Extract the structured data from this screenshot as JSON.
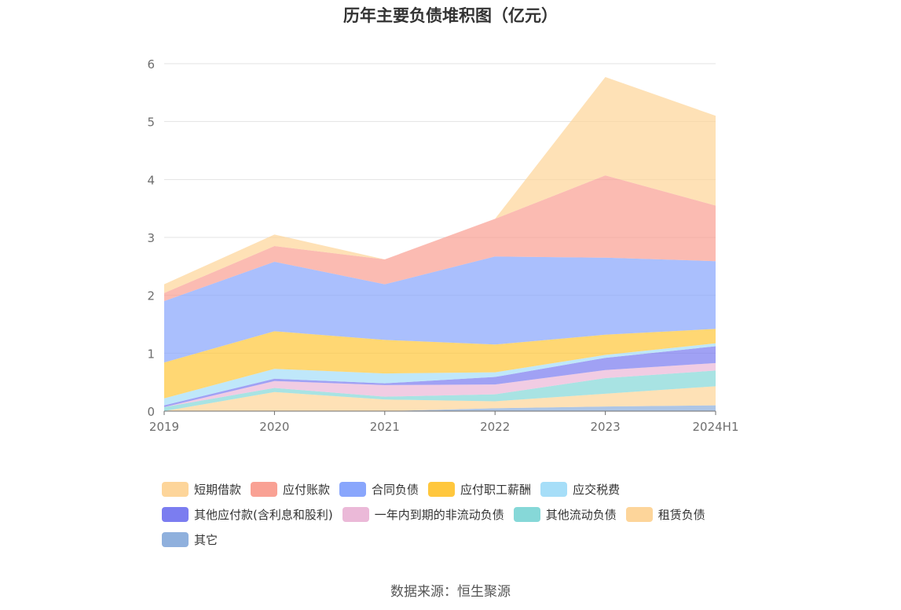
{
  "chart_data": {
    "type": "area",
    "stacked": true,
    "title": "历年主要负债堆积图（亿元）",
    "x": [
      "2019",
      "2020",
      "2021",
      "2022",
      "2023",
      "2024H1"
    ],
    "y_ticks": [
      "0",
      "1",
      "2",
      "3",
      "4",
      "5",
      "6"
    ],
    "ylim": [
      0,
      6
    ],
    "grid": true,
    "legend_position": "bottom",
    "series": [
      {
        "name": "其它",
        "color": "#8fb0dd",
        "values": [
          0.0,
          0.0,
          0.0,
          0.05,
          0.08,
          0.1
        ]
      },
      {
        "name": "租赁负债",
        "color": "#fdd59a",
        "values": [
          0.0,
          0.33,
          0.2,
          0.12,
          0.22,
          0.33
        ]
      },
      {
        "name": "其他流动负债",
        "color": "#86d8d8",
        "values": [
          0.07,
          0.07,
          0.05,
          0.12,
          0.27,
          0.27
        ]
      },
      {
        "name": "一年内到期的非流动负债",
        "color": "#ebb9d8",
        "values": [
          0.0,
          0.12,
          0.2,
          0.17,
          0.14,
          0.13
        ]
      },
      {
        "name": "其他应付款(含利息和股利)",
        "color": "#7b7df0",
        "values": [
          0.03,
          0.04,
          0.03,
          0.13,
          0.21,
          0.29
        ]
      },
      {
        "name": "应交税费",
        "color": "#a6def8",
        "values": [
          0.12,
          0.17,
          0.17,
          0.08,
          0.05,
          0.05
        ]
      },
      {
        "name": "应付职工薪酬",
        "color": "#ffc73d",
        "values": [
          0.62,
          0.65,
          0.58,
          0.48,
          0.35,
          0.25
        ]
      },
      {
        "name": "合同负债",
        "color": "#89a6fc",
        "values": [
          1.06,
          1.2,
          0.96,
          1.52,
          1.33,
          1.17
        ]
      },
      {
        "name": "应付账款",
        "color": "#f9a194",
        "values": [
          0.14,
          0.27,
          0.43,
          0.65,
          1.42,
          0.96
        ]
      },
      {
        "name": "短期借款",
        "color": "#fdd59a",
        "values": [
          0.15,
          0.2,
          0.0,
          0.0,
          1.7,
          1.55
        ]
      }
    ]
  },
  "legend": [
    [
      {
        "label": "短期借款",
        "color": "#fdd59a"
      },
      {
        "label": "应付账款",
        "color": "#f9a194"
      },
      {
        "label": "合同负债",
        "color": "#89a6fc"
      },
      {
        "label": "应付职工薪酬",
        "color": "#ffc73d"
      },
      {
        "label": "应交税费",
        "color": "#a6def8"
      }
    ],
    [
      {
        "label": "其他应付款(含利息和股利)",
        "color": "#7b7df0"
      },
      {
        "label": "一年内到期的非流动负债",
        "color": "#ebb9d8"
      },
      {
        "label": "其他流动负债",
        "color": "#86d8d8"
      },
      {
        "label": "租赁负债",
        "color": "#fdd59a"
      }
    ],
    [
      {
        "label": "其它",
        "color": "#8fb0dd"
      }
    ]
  ],
  "source": "数据来源：恒生聚源"
}
